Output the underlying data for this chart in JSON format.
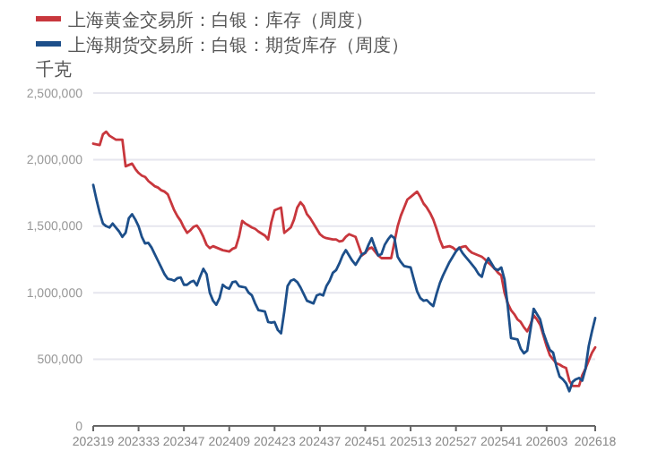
{
  "chart_data": {
    "type": "line",
    "ylabel": "千克",
    "legend": "top left",
    "grid": "y",
    "marker": "none",
    "line_style": "solid",
    "categories": [
      "202319",
      null,
      null,
      null,
      null,
      null,
      null,
      null,
      null,
      null,
      null,
      null,
      null,
      null,
      "202333",
      null,
      null,
      null,
      null,
      null,
      null,
      null,
      null,
      null,
      null,
      null,
      null,
      null,
      "202347",
      null,
      null,
      null,
      null,
      null,
      null,
      null,
      null,
      null,
      null,
      null,
      null,
      null,
      "202409",
      null,
      null,
      null,
      null,
      null,
      null,
      null,
      null,
      null,
      null,
      null,
      null,
      null,
      "202423",
      null,
      null,
      null,
      null,
      null,
      null,
      null,
      null,
      null,
      null,
      null,
      null,
      null,
      "202437",
      null,
      null,
      null,
      null,
      null,
      null,
      null,
      null,
      null,
      null,
      null,
      null,
      null,
      "202451",
      null,
      null,
      null,
      null,
      null,
      null,
      null,
      null,
      null,
      null,
      null,
      null,
      null,
      "202513",
      null,
      null,
      null,
      null,
      null,
      null,
      null,
      null,
      null,
      null,
      null,
      null,
      null,
      "202527",
      null,
      null,
      null,
      null,
      null,
      null,
      null,
      null,
      null,
      null,
      null,
      null,
      null,
      "202541",
      null,
      null,
      null,
      null,
      null,
      null,
      null,
      null,
      null,
      null,
      null,
      null,
      null,
      "202603",
      null,
      null,
      null,
      null,
      null,
      null,
      null,
      null,
      null,
      null,
      null,
      null,
      null,
      null,
      "202618"
    ],
    "ylim": [
      0,
      2500000
    ],
    "yticks": [
      {
        "value": 0,
        "label": "0"
      },
      {
        "value": 500000,
        "label": "500,000"
      },
      {
        "value": 1000000,
        "label": "1,000,000"
      },
      {
        "value": 1500000,
        "label": "1,500,000"
      },
      {
        "value": 2000000,
        "label": "2,000,000"
      },
      {
        "value": 2500000,
        "label": "2,500,000"
      }
    ],
    "series": [
      {
        "name": "上海黄金交易所：白银：库存（周度）",
        "color": "#c8373d",
        "values": [
          2120000,
          2115000,
          2110000,
          2190000,
          2210000,
          2180000,
          2165000,
          2150000,
          2150000,
          2150000,
          1950000,
          1960000,
          1970000,
          1930000,
          1900000,
          1880000,
          1870000,
          1840000,
          1820000,
          1800000,
          1790000,
          1770000,
          1760000,
          1740000,
          1680000,
          1620000,
          1575000,
          1540000,
          1490000,
          1450000,
          1470000,
          1495000,
          1505000,
          1470000,
          1420000,
          1360000,
          1335000,
          1350000,
          1340000,
          1330000,
          1320000,
          1315000,
          1310000,
          1330000,
          1340000,
          1420000,
          1540000,
          1520000,
          1505000,
          1490000,
          1480000,
          1460000,
          1445000,
          1430000,
          1400000,
          1530000,
          1620000,
          1630000,
          1640000,
          1450000,
          1470000,
          1490000,
          1550000,
          1640000,
          1680000,
          1650000,
          1590000,
          1560000,
          1520000,
          1480000,
          1440000,
          1420000,
          1410000,
          1405000,
          1400000,
          1400000,
          1385000,
          1390000,
          1420000,
          1440000,
          1430000,
          1420000,
          1350000,
          1280000,
          1300000,
          1330000,
          1340000,
          1310000,
          1280000,
          1260000,
          1260000,
          1260000,
          1260000,
          1380000,
          1500000,
          1580000,
          1640000,
          1700000,
          1720000,
          1740000,
          1760000,
          1720000,
          1670000,
          1640000,
          1600000,
          1550000,
          1480000,
          1400000,
          1340000,
          1345000,
          1350000,
          1340000,
          1320000,
          1335000,
          1345000,
          1350000,
          1320000,
          1300000,
          1290000,
          1280000,
          1270000,
          1250000,
          1225000,
          1205000,
          1180000,
          1150000,
          1130000,
          1000000,
          920000,
          870000,
          840000,
          800000,
          780000,
          740000,
          710000,
          760000,
          830000,
          800000,
          760000,
          680000,
          600000,
          530000,
          500000,
          470000,
          460000,
          445000,
          435000,
          340000,
          300000,
          300000,
          300000,
          380000,
          430000,
          490000,
          550000,
          590000
        ]
      },
      {
        "name": "上海期货交易所：白银：期货库存（周度）",
        "color": "#1d4f8a",
        "values": [
          1810000,
          1700000,
          1600000,
          1520000,
          1500000,
          1490000,
          1520000,
          1490000,
          1460000,
          1420000,
          1450000,
          1560000,
          1590000,
          1550000,
          1500000,
          1420000,
          1370000,
          1375000,
          1340000,
          1290000,
          1240000,
          1190000,
          1140000,
          1105000,
          1100000,
          1090000,
          1110000,
          1115000,
          1060000,
          1060000,
          1080000,
          1090000,
          1055000,
          1120000,
          1180000,
          1140000,
          1000000,
          940000,
          910000,
          960000,
          1060000,
          1040000,
          1030000,
          1080000,
          1085000,
          1050000,
          1045000,
          1040000,
          1000000,
          980000,
          920000,
          870000,
          865000,
          860000,
          780000,
          775000,
          780000,
          720000,
          695000,
          860000,
          1050000,
          1090000,
          1100000,
          1080000,
          1040000,
          990000,
          940000,
          930000,
          920000,
          980000,
          990000,
          980000,
          1050000,
          1090000,
          1150000,
          1170000,
          1220000,
          1280000,
          1320000,
          1280000,
          1240000,
          1210000,
          1250000,
          1290000,
          1300000,
          1360000,
          1410000,
          1340000,
          1280000,
          1290000,
          1360000,
          1400000,
          1430000,
          1410000,
          1270000,
          1230000,
          1200000,
          1195000,
          1190000,
          1100000,
          1010000,
          960000,
          940000,
          945000,
          920000,
          900000,
          990000,
          1070000,
          1130000,
          1180000,
          1230000,
          1270000,
          1310000,
          1340000,
          1300000,
          1270000,
          1240000,
          1210000,
          1180000,
          1140000,
          1120000,
          1210000,
          1260000,
          1220000,
          1180000,
          1170000,
          1190000,
          1100000,
          900000,
          660000,
          655000,
          650000,
          580000,
          545000,
          565000,
          720000,
          880000,
          840000,
          800000,
          700000,
          630000,
          570000,
          550000,
          450000,
          370000,
          350000,
          320000,
          260000,
          330000,
          350000,
          360000,
          340000,
          430000,
          600000,
          710000,
          810000
        ]
      }
    ]
  }
}
